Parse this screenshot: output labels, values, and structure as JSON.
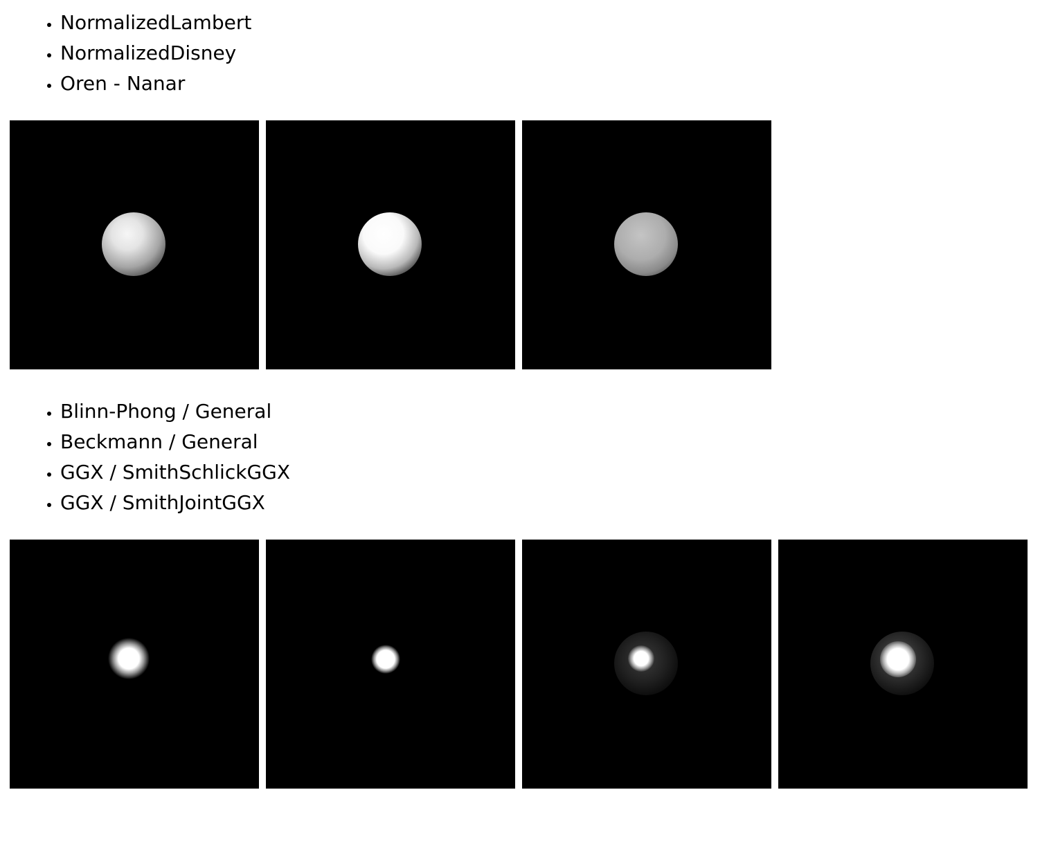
{
  "diffuse_section": {
    "items": [
      {
        "label": "NormalizedLambert"
      },
      {
        "label": "NormalizedDisney"
      },
      {
        "label": "Oren - Nanar"
      }
    ]
  },
  "specular_section": {
    "items": [
      {
        "label": "Blinn-Phong / General"
      },
      {
        "label": "Beckmann / General"
      },
      {
        "label": "GGX / SmithSchlickGGX"
      },
      {
        "label": "GGX / SmithJointGGX"
      }
    ]
  },
  "colors": {
    "page_background": "#ffffff",
    "canvas_background": "#000000",
    "text": "#000000"
  }
}
